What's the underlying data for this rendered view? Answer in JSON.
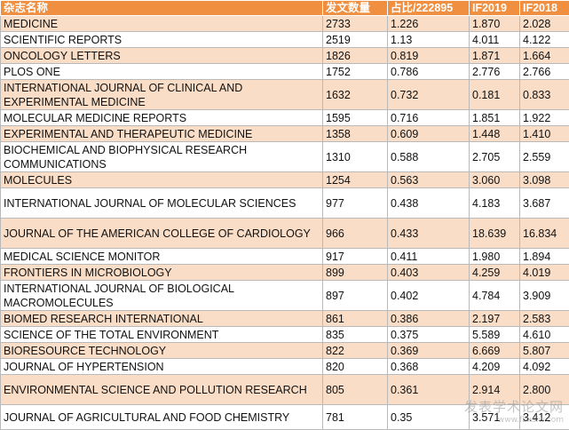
{
  "headers": [
    "杂志名称",
    "发文数量",
    "占比/222895",
    "IF2019",
    "IF2018"
  ],
  "rows": [
    {
      "name": "MEDICINE",
      "count": "2733",
      "ratio": "1.226",
      "if2019": "1.870",
      "if2018": "2.028"
    },
    {
      "name": "SCIENTIFIC REPORTS",
      "count": "2519",
      "ratio": "1.13",
      "if2019": "4.011",
      "if2018": "4.122"
    },
    {
      "name": "ONCOLOGY LETTERS",
      "count": "1826",
      "ratio": "0.819",
      "if2019": "1.871",
      "if2018": "1.664"
    },
    {
      "name": "PLOS ONE",
      "count": "1752",
      "ratio": "0.786",
      "if2019": "2.776",
      "if2018": "2.766"
    },
    {
      "name": "INTERNATIONAL JOURNAL OF CLINICAL AND EXPERIMENTAL MEDICINE",
      "count": "1632",
      "ratio": "0.732",
      "if2019": "0.181",
      "if2018": "0.833"
    },
    {
      "name": "MOLECULAR MEDICINE REPORTS",
      "count": "1595",
      "ratio": "0.716",
      "if2019": "1.851",
      "if2018": "1.922"
    },
    {
      "name": "EXPERIMENTAL AND THERAPEUTIC MEDICINE",
      "count": "1358",
      "ratio": "0.609",
      "if2019": "1.448",
      "if2018": "1.410"
    },
    {
      "name": "BIOCHEMICAL AND BIOPHYSICAL RESEARCH COMMUNICATIONS",
      "count": "1310",
      "ratio": "0.588",
      "if2019": "2.705",
      "if2018": "2.559"
    },
    {
      "name": "MOLECULES",
      "count": "1254",
      "ratio": "0.563",
      "if2019": "3.060",
      "if2018": "3.098"
    },
    {
      "name": "INTERNATIONAL JOURNAL OF MOLECULAR SCIENCES",
      "count": "977",
      "ratio": "0.438",
      "if2019": "4.183",
      "if2018": "3.687"
    },
    {
      "name": "JOURNAL OF THE AMERICAN COLLEGE OF CARDIOLOGY",
      "count": "966",
      "ratio": "0.433",
      "if2019": "18.639",
      "if2018": "16.834"
    },
    {
      "name": "MEDICAL SCIENCE MONITOR",
      "count": "917",
      "ratio": "0.411",
      "if2019": "1.980",
      "if2018": "1.894"
    },
    {
      "name": "FRONTIERS IN MICROBIOLOGY",
      "count": "899",
      "ratio": "0.403",
      "if2019": "4.259",
      "if2018": "4.019"
    },
    {
      "name": "INTERNATIONAL JOURNAL OF BIOLOGICAL MACROMOLECULES",
      "count": "897",
      "ratio": "0.402",
      "if2019": "4.784",
      "if2018": "3.909"
    },
    {
      "name": "BIOMED RESEARCH INTERNATIONAL",
      "count": "861",
      "ratio": "0.386",
      "if2019": "2.197",
      "if2018": "2.583"
    },
    {
      "name": "SCIENCE OF THE TOTAL ENVIRONMENT",
      "count": "835",
      "ratio": "0.375",
      "if2019": "5.589",
      "if2018": "4.610"
    },
    {
      "name": "BIORESOURCE TECHNOLOGY",
      "count": "822",
      "ratio": "0.369",
      "if2019": "6.669",
      "if2018": "5.807"
    },
    {
      "name": "JOURNAL OF HYPERTENSION",
      "count": "820",
      "ratio": "0.368",
      "if2019": "4.209",
      "if2018": "4.092"
    },
    {
      "name": "ENVIRONMENTAL SCIENCE AND POLLUTION RESEARCH",
      "count": "805",
      "ratio": "0.361",
      "if2019": "2.914",
      "if2018": "2.800"
    },
    {
      "name": "JOURNAL OF AGRICULTURAL AND FOOD CHEMISTRY",
      "count": "781",
      "ratio": "0.35",
      "if2019": "3.571",
      "if2018": "3.412"
    }
  ],
  "watermark": {
    "line1": "发表学术论文网",
    "line2": "www.fbxslw.com"
  },
  "colors": {
    "header_bg": "#ef8f3f",
    "header_text": "#ffffff",
    "shaded_row": "#f9ddc6",
    "plain_row": "#ffffff",
    "border": "#b9b9b9"
  }
}
